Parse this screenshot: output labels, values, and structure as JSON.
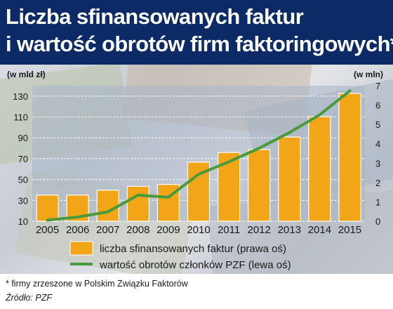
{
  "title": {
    "line1": "Liczba sfinansowanych faktur",
    "line2": "i wartość obrotów firm faktoringowych*"
  },
  "footnote": "* firmy zrzeszone w Polskim Związku Faktorów",
  "source": "Źródło: PZF",
  "colors": {
    "header_bg": "#0b2a66",
    "bar": "#f2a516",
    "line": "#4a9a3c",
    "plot_bg": "#a8b4c6"
  },
  "chart_data": {
    "type": "bar",
    "categories": [
      "2005",
      "2006",
      "2007",
      "2008",
      "2009",
      "2010",
      "2011",
      "2012",
      "2013",
      "2014",
      "2015"
    ],
    "left_axis": {
      "unit": "(w mld zł)",
      "ticks": [
        "10",
        "30",
        "50",
        "70",
        "90",
        "110",
        "130"
      ],
      "range": [
        10,
        140
      ]
    },
    "right_axis": {
      "unit": "(w mln)",
      "ticks": [
        "0",
        "1",
        "2",
        "3",
        "4",
        "5",
        "6",
        "7"
      ],
      "range": [
        0,
        7
      ]
    },
    "series": [
      {
        "name": "liczba sfinansowanych faktur (prawa oś)",
        "type": "bar",
        "axis": "right",
        "values": [
          1.35,
          1.35,
          1.6,
          1.8,
          1.9,
          3.05,
          3.55,
          3.7,
          4.35,
          5.4,
          6.6
        ]
      },
      {
        "name": "wartość obrotów członków PZF (lewa oś)",
        "type": "line",
        "axis": "left",
        "values": [
          11,
          14,
          19,
          35,
          33,
          55,
          67,
          80,
          95,
          112,
          135
        ]
      }
    ],
    "legend_position": "bottom",
    "grid": true
  }
}
